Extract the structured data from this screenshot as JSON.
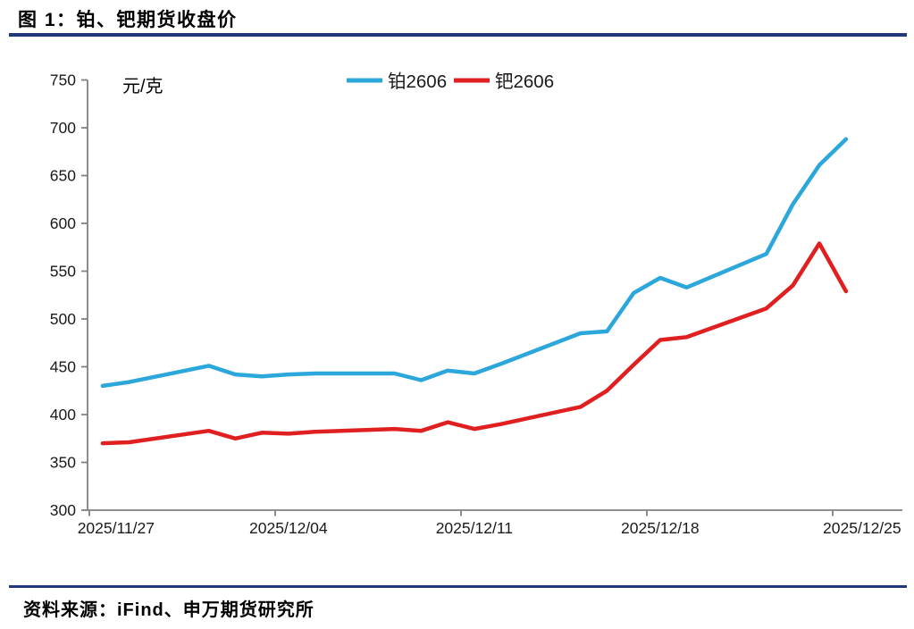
{
  "page": {
    "title": "图 1：铂、钯期货收盘价",
    "source_note": "资料来源：iFind、申万期货研究所",
    "rule_color": "#21387d"
  },
  "chart_data": {
    "type": "line",
    "unit_label": "元/克",
    "ylim": [
      300,
      750
    ],
    "ytick_step": 50,
    "xtick_labels": [
      "2025/11/27",
      "2025/12/04",
      "2025/12/11",
      "2025/12/18",
      "2025/12/25"
    ],
    "grid": false,
    "legend_position": "top-center",
    "axis_color": "#808080",
    "label_color": "#1a1a1a",
    "dates": [
      "2025/11/27",
      "2025/11/28",
      "2025/12/01",
      "2025/12/02",
      "2025/12/03",
      "2025/12/04",
      "2025/12/05",
      "2025/12/08",
      "2025/12/09",
      "2025/12/10",
      "2025/12/11",
      "2025/12/12",
      "2025/12/15",
      "2025/12/16",
      "2025/12/17",
      "2025/12/18",
      "2025/12/19",
      "2025/12/22",
      "2025/12/23",
      "2025/12/24",
      "2025/12/25"
    ],
    "series": [
      {
        "name": "铂2606",
        "color": "#2BA7DC",
        "values": [
          430,
          434,
          451,
          442,
          440,
          442,
          443,
          443,
          436,
          446,
          443,
          453,
          485,
          487,
          527,
          543,
          533,
          568,
          620,
          661,
          688
        ]
      },
      {
        "name": "钯2606",
        "color": "#E01F20",
        "values": [
          370,
          371,
          383,
          375,
          381,
          380,
          382,
          385,
          383,
          392,
          385,
          390,
          408,
          425,
          452,
          478,
          481,
          511,
          535,
          579,
          529
        ]
      }
    ]
  }
}
